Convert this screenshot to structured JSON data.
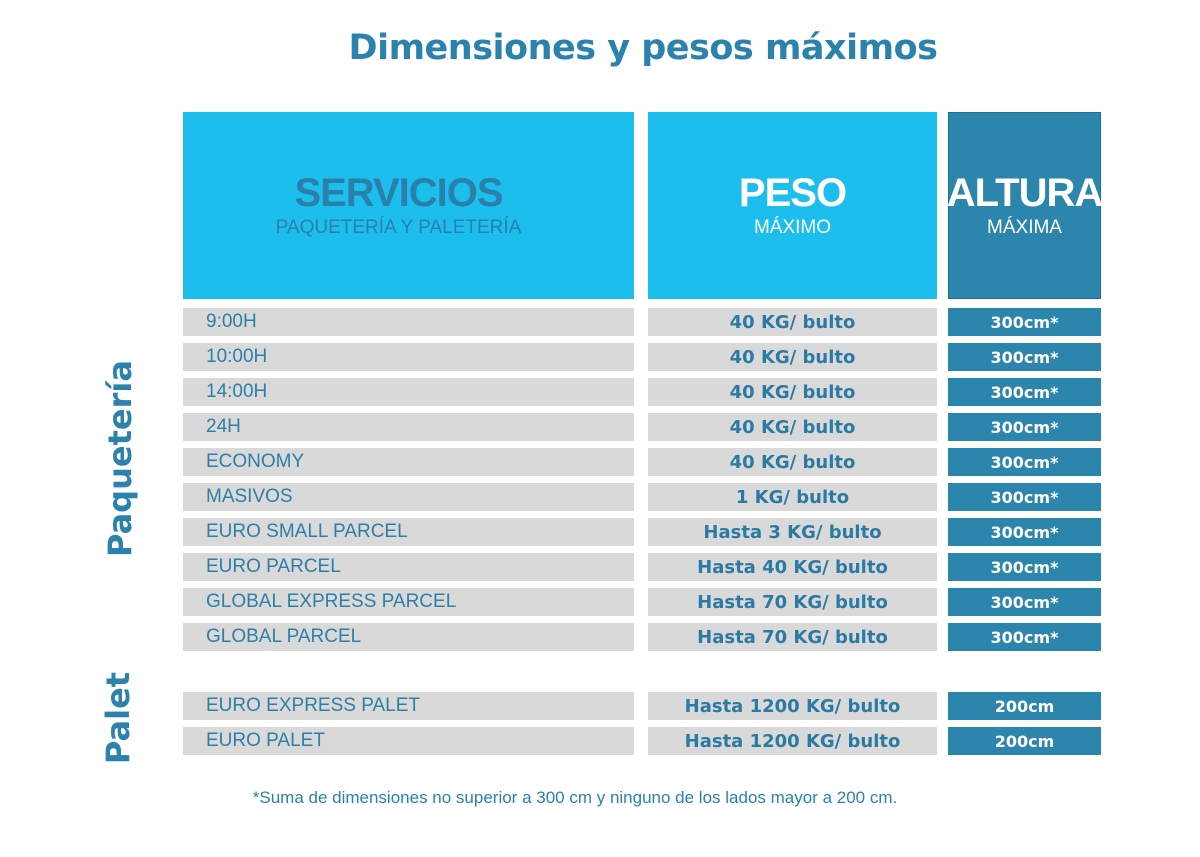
{
  "title": "Dimensiones y pesos máximos",
  "header": {
    "services_main": "SERVICIOS",
    "services_sub": "PAQUETERÍA Y PALETERÍA",
    "peso_main": "PESO",
    "peso_sub": "MÁXIMO",
    "altura_main": "ALTURA",
    "altura_sub": "MÁXIMA"
  },
  "side_labels": {
    "paqueteria": "Paquetería",
    "palet": "Palet"
  },
  "rows": [
    {
      "service": "9:00H",
      "peso": "40 KG/ bulto",
      "altura": "300cm*"
    },
    {
      "service": "10:00H",
      "peso": "40 KG/ bulto",
      "altura": "300cm*"
    },
    {
      "service": "14:00H",
      "peso": "40 KG/ bulto",
      "altura": "300cm*"
    },
    {
      "service": "24H",
      "peso": "40 KG/ bulto",
      "altura": "300cm*"
    },
    {
      "service": "ECONOMY",
      "peso": "40 KG/ bulto",
      "altura": "300cm*"
    },
    {
      "service": "MASIVOS",
      "peso": "1 KG/ bulto",
      "altura": "300cm*"
    },
    {
      "service": "EURO SMALL PARCEL",
      "peso": "Hasta 3 KG/ bulto",
      "altura": "300cm*"
    },
    {
      "service": "EURO PARCEL",
      "peso": "Hasta 40 KG/ bulto",
      "altura": "300cm*"
    },
    {
      "service": "GLOBAL EXPRESS PARCEL",
      "peso": "Hasta 70 KG/ bulto",
      "altura": "300cm*"
    },
    {
      "service": "GLOBAL PARCEL",
      "peso": "Hasta 70 KG/ bulto",
      "altura": "300cm*"
    }
  ],
  "palet_rows": [
    {
      "service": "EURO EXPRESS PALET",
      "peso": "Hasta 1200 KG/ bulto",
      "altura": "200cm"
    },
    {
      "service": "EURO PALET",
      "peso": "Hasta 1200 KG/ bulto",
      "altura": "200cm"
    }
  ],
  "footnote": "*Suma de dimensiones no superior a 300 cm y ninguno de los lados mayor a 200 cm."
}
